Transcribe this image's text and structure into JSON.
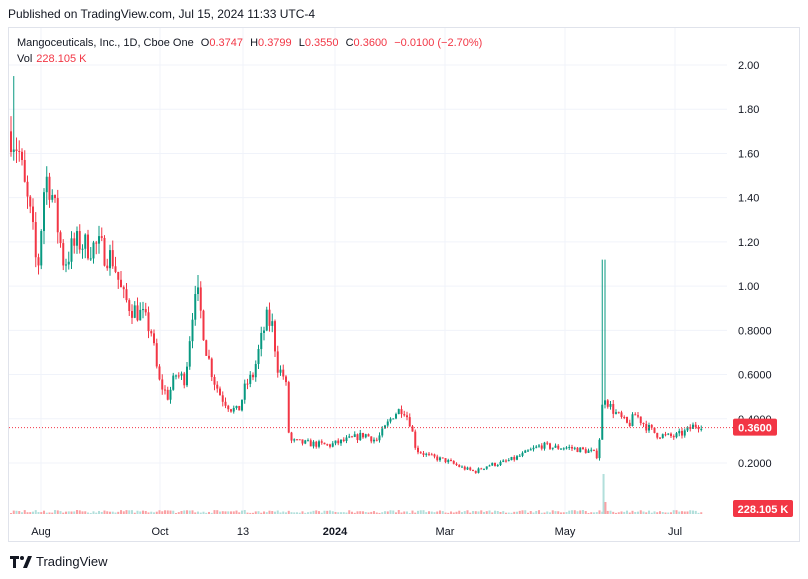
{
  "header": {
    "published": "Published on TradingView.com, Jul 15, 2024 11:33 UTC-4"
  },
  "legend": {
    "symbol": "Mangoceuticals, Inc., 1D, Cboe One",
    "open_label": "O",
    "open": "0.3747",
    "high_label": "H",
    "high": "0.3799",
    "low_label": "L",
    "low": "0.3550",
    "close_label": "C",
    "close": "0.3600",
    "change": "−0.0100 (−2.70%)",
    "vol_label": "Vol",
    "vol": "228.105 K"
  },
  "branding": {
    "name": "TradingView"
  },
  "colors": {
    "up": "#089981",
    "down": "#f23645",
    "grid": "#f0f3fa",
    "axis_text": "#131722"
  },
  "chart_data": {
    "type": "candlestick",
    "scale": "linear",
    "y_ticks": [
      "2.00",
      "1.80",
      "1.60",
      "1.40",
      "1.20",
      "1.00",
      "0.8000",
      "0.6000",
      "0.4000",
      "0.2000"
    ],
    "y_tick_values": [
      2.0,
      1.8,
      1.6,
      1.4,
      1.2,
      1.0,
      0.8,
      0.6,
      0.4,
      0.2
    ],
    "ylim": [
      0.0,
      2.06
    ],
    "x_tick_labels": [
      "Aug",
      "Oct",
      "13",
      "2024",
      "Mar",
      "May",
      "Jul"
    ],
    "last_price": "0.3600",
    "last_volume": "228.105 K",
    "grid": true,
    "price_path": [
      [
        "2023-07-13",
        1.7
      ],
      [
        "2023-07-17",
        1.62
      ],
      [
        "2023-07-20",
        1.45
      ],
      [
        "2023-07-24",
        1.28
      ],
      [
        "2023-07-27",
        1.05
      ],
      [
        "2023-07-31",
        1.5
      ],
      [
        "2023-08-03",
        1.45
      ],
      [
        "2023-08-07",
        1.25
      ],
      [
        "2023-08-10",
        1.1
      ],
      [
        "2023-08-14",
        1.17
      ],
      [
        "2023-08-18",
        1.2
      ],
      [
        "2023-08-22",
        1.18
      ],
      [
        "2023-08-28",
        1.18
      ],
      [
        "2023-09-05",
        1.12
      ],
      [
        "2023-09-10",
        0.95
      ],
      [
        "2023-09-15",
        0.9
      ],
      [
        "2023-09-20",
        0.87
      ],
      [
        "2023-09-25",
        0.8
      ],
      [
        "2023-09-29",
        0.57
      ],
      [
        "2023-10-04",
        0.5
      ],
      [
        "2023-10-08",
        0.6
      ],
      [
        "2023-10-13",
        0.58
      ],
      [
        "2023-10-17",
        0.9
      ],
      [
        "2023-10-20",
        0.95
      ],
      [
        "2023-10-24",
        0.72
      ],
      [
        "2023-10-28",
        0.58
      ],
      [
        "2023-11-01",
        0.5
      ],
      [
        "2023-11-06",
        0.45
      ],
      [
        "2023-11-10",
        0.43
      ],
      [
        "2023-11-14",
        0.55
      ],
      [
        "2023-11-18",
        0.6
      ],
      [
        "2023-11-22",
        0.75
      ],
      [
        "2023-11-25",
        0.85
      ],
      [
        "2023-11-28",
        0.82
      ],
      [
        "2023-12-01",
        0.63
      ],
      [
        "2023-12-05",
        0.58
      ],
      [
        "2023-12-07",
        0.3
      ],
      [
        "2023-12-15",
        0.29
      ],
      [
        "2023-12-28",
        0.28
      ],
      [
        "2024-01-09",
        0.31
      ],
      [
        "2024-01-16",
        0.33
      ],
      [
        "2024-01-22",
        0.3
      ],
      [
        "2024-01-26",
        0.35
      ],
      [
        "2024-01-31",
        0.42
      ],
      [
        "2024-02-05",
        0.45
      ],
      [
        "2024-02-09",
        0.38
      ],
      [
        "2024-02-12",
        0.26
      ],
      [
        "2024-02-19",
        0.23
      ],
      [
        "2024-02-28",
        0.21
      ],
      [
        "2024-03-07",
        0.18
      ],
      [
        "2024-03-14",
        0.16
      ],
      [
        "2024-03-21",
        0.19
      ],
      [
        "2024-03-28",
        0.2
      ],
      [
        "2024-04-04",
        0.22
      ],
      [
        "2024-04-11",
        0.25
      ],
      [
        "2024-04-18",
        0.28
      ],
      [
        "2024-04-25",
        0.27
      ],
      [
        "2024-05-02",
        0.27
      ],
      [
        "2024-05-09",
        0.26
      ],
      [
        "2024-05-15",
        0.25
      ],
      [
        "2024-05-18",
        0.23
      ],
      [
        "2024-05-21",
        0.52
      ],
      [
        "2024-05-24",
        0.46
      ],
      [
        "2024-05-28",
        0.42
      ],
      [
        "2024-06-03",
        0.37
      ],
      [
        "2024-06-07",
        0.42
      ],
      [
        "2024-06-12",
        0.37
      ],
      [
        "2024-06-18",
        0.33
      ],
      [
        "2024-06-24",
        0.32
      ],
      [
        "2024-06-28",
        0.32
      ],
      [
        "2024-07-03",
        0.34
      ],
      [
        "2024-07-08",
        0.37
      ],
      [
        "2024-07-12",
        0.3747
      ]
    ],
    "spikes": [
      {
        "date": "2023-07-14",
        "high": 1.95
      },
      {
        "date": "2023-10-20",
        "high": 1.05
      },
      {
        "date": "2024-05-21",
        "high": 1.12
      }
    ],
    "volume_spike_dates": [
      "2024-05-21",
      "2024-05-22"
    ]
  }
}
